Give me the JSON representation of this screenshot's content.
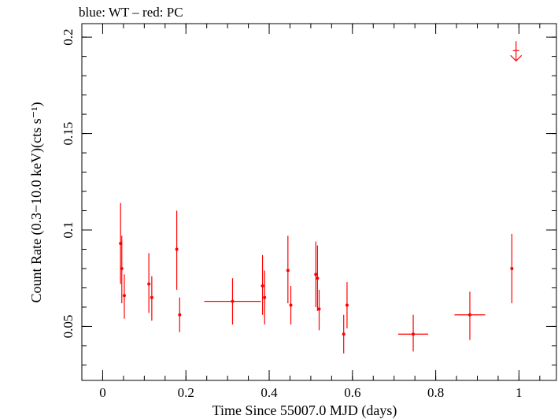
{
  "chart_data": {
    "type": "scatter",
    "title": "blue: WT – red: PC",
    "xlabel": "Time Since 55007.0 MJD (days)",
    "ylabel": "Count Rate (0.3−10.0 keV)(cts s⁻¹)",
    "xlim": [
      -0.05,
      1.09
    ],
    "ylim": [
      0.022,
      0.207
    ],
    "x_ticks": [
      0,
      0.2,
      0.4,
      0.6,
      0.8,
      1
    ],
    "x_tick_labels": [
      "0",
      "0.2",
      "0.4",
      "0.6",
      "0.8",
      "1"
    ],
    "y_ticks": [
      0.05,
      0.1,
      0.15,
      0.2
    ],
    "y_tick_labels": [
      "0.05",
      "0.1",
      "0.15",
      "0.2"
    ],
    "x_minor_step": 0.05,
    "y_minor_step": 0.01,
    "grid": false,
    "colors": {
      "pc": "#ff0000",
      "axes": "#000000"
    },
    "series": [
      {
        "mode": "PC",
        "points": [
          {
            "x": 0.043,
            "xerr": 0.002,
            "y": 0.093,
            "ylo": 0.072,
            "yhi": 0.114
          },
          {
            "x": 0.046,
            "xerr": 0.002,
            "y": 0.08,
            "ylo": 0.062,
            "yhi": 0.097
          },
          {
            "x": 0.052,
            "xerr": 0.002,
            "y": 0.066,
            "ylo": 0.054,
            "yhi": 0.077
          },
          {
            "x": 0.111,
            "xerr": 0.002,
            "y": 0.072,
            "ylo": 0.057,
            "yhi": 0.088
          },
          {
            "x": 0.118,
            "xerr": 0.002,
            "y": 0.065,
            "ylo": 0.053,
            "yhi": 0.076
          },
          {
            "x": 0.178,
            "xerr": 0.002,
            "y": 0.09,
            "ylo": 0.069,
            "yhi": 0.11
          },
          {
            "x": 0.185,
            "xerr": 0.002,
            "y": 0.056,
            "ylo": 0.047,
            "yhi": 0.065
          },
          {
            "x": 0.312,
            "xerr": 0.068,
            "y": 0.063,
            "ylo": 0.051,
            "yhi": 0.075
          },
          {
            "x": 0.384,
            "xerr": 0.002,
            "y": 0.071,
            "ylo": 0.056,
            "yhi": 0.087
          },
          {
            "x": 0.389,
            "xerr": 0.002,
            "y": 0.065,
            "ylo": 0.051,
            "yhi": 0.079
          },
          {
            "x": 0.445,
            "xerr": 0.002,
            "y": 0.079,
            "ylo": 0.062,
            "yhi": 0.097
          },
          {
            "x": 0.452,
            "xerr": 0.002,
            "y": 0.061,
            "ylo": 0.051,
            "yhi": 0.071
          },
          {
            "x": 0.512,
            "xerr": 0.002,
            "y": 0.077,
            "ylo": 0.06,
            "yhi": 0.094
          },
          {
            "x": 0.516,
            "xerr": 0.002,
            "y": 0.075,
            "ylo": 0.058,
            "yhi": 0.092
          },
          {
            "x": 0.52,
            "xerr": 0.002,
            "y": 0.059,
            "ylo": 0.048,
            "yhi": 0.069
          },
          {
            "x": 0.579,
            "xerr": 0.002,
            "y": 0.046,
            "ylo": 0.036,
            "yhi": 0.056
          },
          {
            "x": 0.587,
            "xerr": 0.002,
            "y": 0.061,
            "ylo": 0.049,
            "yhi": 0.073
          },
          {
            "x": 0.746,
            "xerr": 0.036,
            "y": 0.046,
            "ylo": 0.037,
            "yhi": 0.056
          },
          {
            "x": 0.882,
            "xerr": 0.037,
            "y": 0.056,
            "ylo": 0.043,
            "yhi": 0.068
          },
          {
            "x": 0.983,
            "xerr": 0.002,
            "y": 0.08,
            "ylo": 0.062,
            "yhi": 0.098
          }
        ],
        "upper_limits": [
          {
            "x": 0.993,
            "y": 0.193
          }
        ]
      }
    ]
  }
}
